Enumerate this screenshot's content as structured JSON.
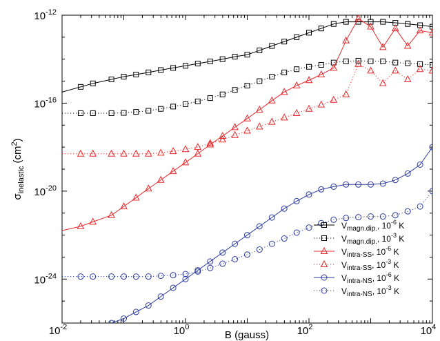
{
  "chart_data": {
    "type": "line",
    "xscale": "log",
    "yscale": "log",
    "xlim": [
      0.01,
      10000
    ],
    "ylim": [
      1e-26,
      1e-12
    ],
    "xlabel": "B (gauss)",
    "ylabel": {
      "main": "σ",
      "sub": "inelastic",
      "rest": " (cm",
      "sup": "2",
      "close": ")"
    },
    "x_ticks": [
      {
        "value": 0.01,
        "base": "10",
        "exp": "-2"
      },
      {
        "value": 1,
        "base": "10",
        "exp": "0"
      },
      {
        "value": 100,
        "base": "10",
        "exp": "2"
      },
      {
        "value": 10000,
        "base": "10",
        "exp": "4"
      }
    ],
    "y_ticks": [
      {
        "value": 1e-24,
        "base": "10",
        "exp": "-24"
      },
      {
        "value": 1e-20,
        "base": "10",
        "exp": "-20"
      },
      {
        "value": 1e-16,
        "base": "10",
        "exp": "-16"
      },
      {
        "value": 1e-12,
        "base": "10",
        "exp": "-12"
      }
    ],
    "legend_position": "bottom-right",
    "series": [
      {
        "label_main": "V",
        "label_sub": "magn.dip.",
        "label_temp": ", 10",
        "label_exp": "-6",
        "label_unit": " K",
        "color": "#000000",
        "marker": "square",
        "line": "solid",
        "x": [
          0.01,
          0.02,
          0.0316,
          0.0631,
          0.1,
          0.158,
          0.251,
          0.398,
          0.631,
          1,
          1.58,
          2.51,
          3.98,
          6.31,
          10,
          15.8,
          25.1,
          39.8,
          63.1,
          100,
          158,
          251,
          398,
          631,
          1000,
          1580,
          2510,
          3980,
          6310,
          10000
        ],
        "y": [
          3.2e-16,
          5.5e-16,
          7.9e-16,
          1.2e-15,
          1.6e-15,
          2e-15,
          2.5e-15,
          3.2e-15,
          4e-15,
          5e-15,
          6.3e-15,
          7.9e-15,
          1e-14,
          1.3e-14,
          1.6e-14,
          2.5e-14,
          4e-14,
          6.3e-14,
          1e-13,
          1.6e-13,
          2.5e-13,
          4e-13,
          5e-13,
          5e-13,
          5e-13,
          5e-13,
          4.5e-13,
          4e-13,
          3.5e-13,
          3e-13
        ]
      },
      {
        "label_main": "V",
        "label_sub": "magn.dip.",
        "label_temp": ", 10",
        "label_exp": "-3",
        "label_unit": " K",
        "color": "#000000",
        "marker": "square",
        "line": "dotted",
        "x": [
          0.01,
          0.02,
          0.0316,
          0.0631,
          0.1,
          0.158,
          0.251,
          0.398,
          0.631,
          1,
          1.58,
          2.51,
          3.98,
          6.31,
          10,
          15.8,
          25.1,
          39.8,
          63.1,
          100,
          158,
          251,
          398,
          631,
          1000,
          1580,
          2510,
          3980,
          6310,
          10000
        ],
        "y": [
          3.5e-17,
          3.5e-17,
          3.5e-17,
          3.5e-17,
          3.6e-17,
          4e-17,
          4.5e-17,
          5.5e-17,
          7e-17,
          9e-17,
          1.2e-16,
          1.7e-16,
          2.5e-16,
          4e-16,
          6.3e-16,
          1e-15,
          1.6e-15,
          2.5e-15,
          3.5e-15,
          4.5e-15,
          5.5e-15,
          7e-15,
          8e-15,
          8.5e-15,
          8e-15,
          8e-15,
          7e-15,
          6.5e-15,
          6e-15,
          5.5e-15
        ]
      },
      {
        "label_main": "V",
        "label_sub": "intra-SS",
        "label_temp": ",   10",
        "label_exp": "-6",
        "label_unit": " K",
        "color": "#e8282a",
        "marker": "triangle",
        "line": "solid",
        "x": [
          0.01,
          0.02,
          0.0316,
          0.0631,
          0.1,
          0.158,
          0.251,
          0.398,
          0.631,
          1,
          1.58,
          2.51,
          3.98,
          6.31,
          10,
          15.8,
          25.1,
          39.8,
          63.1,
          100,
          158,
          251,
          398,
          631,
          1000,
          1580,
          2510,
          3980,
          6310,
          10000
        ],
        "y": [
          1.6e-22,
          2.5e-22,
          4e-22,
          8e-22,
          2e-21,
          5e-21,
          1.3e-20,
          3.2e-20,
          8e-20,
          2e-19,
          5e-19,
          1.3e-18,
          3.2e-18,
          8e-18,
          2e-17,
          5e-17,
          1.3e-16,
          3.2e-16,
          6.3e-16,
          1.1e-15,
          2e-15,
          4e-15,
          7e-14,
          7e-13,
          3e-13,
          3.5e-14,
          2.5e-13,
          4e-14,
          2e-13,
          1.6e-13
        ]
      },
      {
        "label_main": "V",
        "label_sub": "intra-SS",
        "label_temp": ",   10",
        "label_exp": "-3",
        "label_unit": " K",
        "color": "#e8282a",
        "marker": "triangle",
        "line": "dotted",
        "x": [
          0.01,
          0.02,
          0.0316,
          0.0631,
          0.1,
          0.158,
          0.251,
          0.398,
          0.631,
          1,
          1.58,
          2.51,
          3.98,
          6.31,
          10,
          15.8,
          25.1,
          39.8,
          63.1,
          100,
          158,
          251,
          398,
          631,
          1000,
          1580,
          2510,
          3980,
          6310,
          10000
        ],
        "y": [
          5e-19,
          5e-19,
          5e-19,
          5e-19,
          5e-19,
          5e-19,
          5e-19,
          5.5e-19,
          6.5e-19,
          8e-19,
          1e-18,
          1.5e-18,
          2.2e-18,
          3.5e-18,
          5.5e-18,
          8.5e-18,
          1.4e-17,
          2.2e-17,
          3.5e-17,
          5.5e-17,
          8.5e-17,
          1.4e-16,
          2.5e-16,
          6e-15,
          3e-15,
          8e-16,
          3e-15,
          1.2e-15,
          3.5e-15,
          3e-15
        ]
      },
      {
        "label_main": "V",
        "label_sub": "intra-NS",
        "label_temp": ",   10",
        "label_exp": "-6",
        "label_unit": " K",
        "color": "#2b3a9e",
        "marker": "circle",
        "line": "solid",
        "x": [
          0.0631,
          0.1,
          0.158,
          0.251,
          0.398,
          0.631,
          1,
          1.58,
          2.51,
          3.98,
          6.31,
          10,
          15.8,
          25.1,
          39.8,
          63.1,
          100,
          158,
          251,
          398,
          631,
          1000,
          1580,
          2510,
          3980,
          6310,
          10000
        ],
        "y": [
          1e-26,
          1.6e-26,
          3.2e-26,
          6.3e-26,
          1.6e-25,
          4e-25,
          1e-24,
          2.5e-24,
          6.3e-24,
          1.6e-23,
          4e-23,
          1e-22,
          2.5e-22,
          6.3e-22,
          1.6e-21,
          3.5e-21,
          7e-21,
          1.2e-20,
          1.6e-20,
          2e-20,
          2e-20,
          2e-20,
          2.2e-20,
          3.2e-20,
          6.3e-20,
          1.6e-19,
          1e-18
        ]
      },
      {
        "label_main": "V",
        "label_sub": "intra-NS",
        "label_temp": ",   10",
        "label_exp": "-3",
        "label_unit": " K",
        "color": "#2b3a9e",
        "marker": "circle",
        "line": "dotted",
        "x": [
          0.01,
          0.02,
          0.0316,
          0.0631,
          0.1,
          0.158,
          0.251,
          0.398,
          0.631,
          1,
          1.58,
          2.51,
          3.98,
          6.31,
          10,
          15.8,
          25.1,
          39.8,
          63.1,
          100,
          158,
          251,
          398,
          631,
          1000,
          1580,
          2510,
          3980,
          6310,
          10000
        ],
        "y": [
          1.3e-24,
          1.3e-24,
          1.3e-24,
          1.3e-24,
          1.3e-24,
          1.3e-24,
          1.3e-24,
          1.4e-24,
          1.5e-24,
          1.7e-24,
          2.2e-24,
          3.2e-24,
          5e-24,
          8e-24,
          1.3e-23,
          2.2e-23,
          4e-23,
          7e-23,
          1.3e-22,
          2.2e-22,
          3.5e-22,
          5e-22,
          6e-22,
          6.5e-22,
          7e-22,
          7e-22,
          8e-22,
          1.2e-21,
          2e-21,
          1e-20
        ]
      }
    ]
  }
}
